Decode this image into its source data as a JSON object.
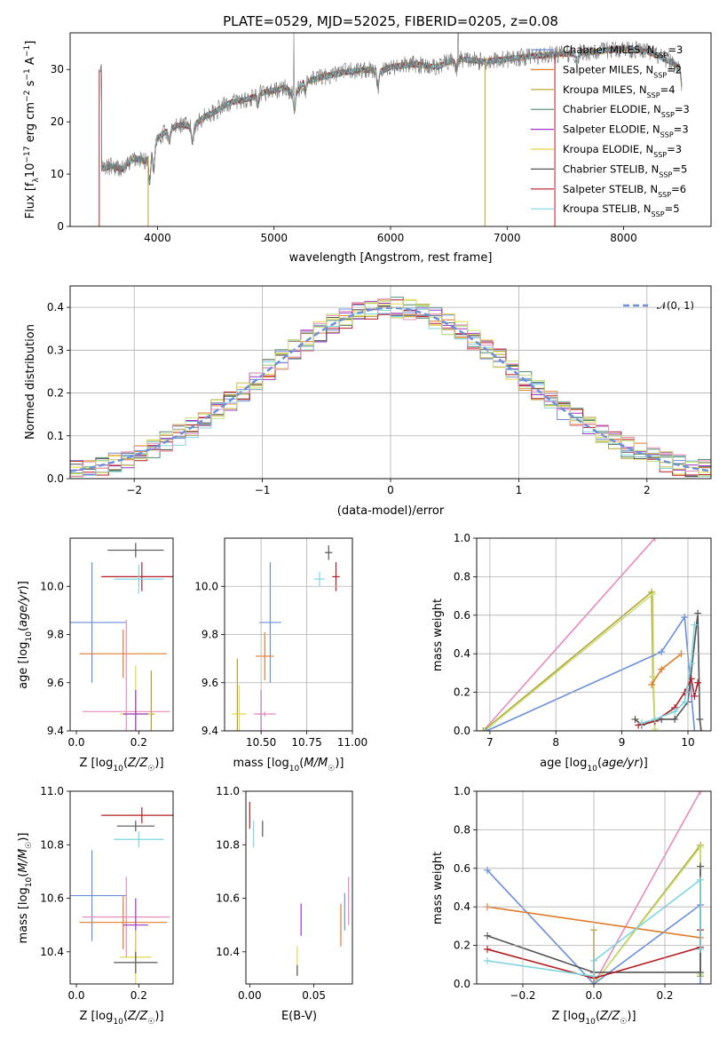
{
  "figure_title": "PLATE=0529, MJD=52025, FIBERID=0205, z=0.08",
  "colors": {
    "Chabrier MILES": "#6a8fdb",
    "Salpeter MILES": "#e07b2a",
    "Kroupa MILES": "#b5a32d",
    "Chabrier ELODIE": "#4f8a6e",
    "Salpeter ELODIE": "#9b37c4",
    "Kroupa ELODIE": "#e3d84a",
    "Chabrier STELIB": "#555555",
    "Salpeter STELIB": "#b51c22",
    "Kroupa STELIB": "#7fd6df",
    "extra_pink": "#e88bbd",
    "extra_lime": "#c6e07a",
    "gauss": "#6a8fdb"
  },
  "chart_data": [
    {
      "id": "spectrum",
      "type": "line",
      "xlabel": "wavelength [Angstrom, rest frame]",
      "ylabel": "Flux [fλ10⁻¹⁷ erg cm⁻² s⁻¹ A⁻¹]",
      "xlim": [
        3250,
        8750
      ],
      "ylim": [
        0,
        37
      ],
      "xticks": [
        4000,
        5000,
        6000,
        7000,
        8000
      ],
      "yticks": [
        0,
        10,
        20,
        30
      ],
      "legend": {
        "placement": "right",
        "entries": [
          {
            "name": "Chabrier MILES",
            "nssp": "3"
          },
          {
            "name": "Salpeter MILES",
            "nssp": "2"
          },
          {
            "name": "Kroupa MILES",
            "nssp": "4"
          },
          {
            "name": "Chabrier ELODIE",
            "nssp": "3"
          },
          {
            "name": "Salpeter ELODIE",
            "nssp": "3"
          },
          {
            "name": "Kroupa ELODIE",
            "nssp": "3"
          },
          {
            "name": "Chabrier STELIB",
            "nssp": "5"
          },
          {
            "name": "Salpeter STELIB",
            "nssp": "6"
          },
          {
            "name": "Kroupa STELIB",
            "nssp": "5"
          }
        ]
      },
      "continuum": [
        [
          3520,
          11
        ],
        [
          3600,
          11.5
        ],
        [
          3700,
          11
        ],
        [
          3800,
          13
        ],
        [
          3900,
          12.5
        ],
        [
          3960,
          15.5
        ],
        [
          4000,
          17
        ],
        [
          4100,
          18.5
        ],
        [
          4200,
          19.5
        ],
        [
          4300,
          19
        ],
        [
          4400,
          21
        ],
        [
          4500,
          22
        ],
        [
          4600,
          23.5
        ],
        [
          4700,
          24
        ],
        [
          4800,
          24.5
        ],
        [
          4900,
          25.5
        ],
        [
          5000,
          26
        ],
        [
          5100,
          26.5
        ],
        [
          5175,
          25
        ],
        [
          5250,
          27.5
        ],
        [
          5400,
          28.5
        ],
        [
          5600,
          29.5
        ],
        [
          5800,
          30
        ],
        [
          5900,
          29.5
        ],
        [
          6000,
          30.5
        ],
        [
          6200,
          31
        ],
        [
          6400,
          30.5
        ],
        [
          6500,
          31.5
        ],
        [
          6600,
          32
        ],
        [
          6800,
          31.5
        ],
        [
          7000,
          32
        ],
        [
          7200,
          32.5
        ],
        [
          7500,
          33
        ],
        [
          7800,
          33.5
        ],
        [
          8000,
          34
        ],
        [
          8200,
          33.5
        ],
        [
          8400,
          31.5
        ],
        [
          8500,
          30
        ]
      ],
      "dips": [
        [
          3933,
          6
        ],
        [
          3968,
          5
        ],
        [
          4102,
          2.5
        ],
        [
          4300,
          3
        ],
        [
          4861,
          2
        ],
        [
          5175,
          3
        ],
        [
          5270,
          1.5
        ],
        [
          5890,
          3
        ],
        [
          6563,
          2
        ],
        [
          7600,
          2
        ],
        [
          8500,
          3
        ]
      ],
      "spikes": [
        [
          5170,
          37
        ],
        [
          6580,
          37
        ]
      ],
      "dropouts": [
        [
          3500,
          "Salpeter STELIB"
        ],
        [
          3920,
          "Kroupa MILES"
        ],
        [
          6810,
          "Kroupa MILES"
        ],
        [
          7410,
          "Salpeter STELIB"
        ]
      ]
    },
    {
      "id": "residuals",
      "type": "line",
      "xlabel": "(data-model)/error",
      "ylabel": "Normed distribution",
      "xlim": [
        -2.5,
        2.5
      ],
      "ylim": [
        0,
        0.45
      ],
      "xticks": [
        -2,
        -1,
        0,
        1,
        2
      ],
      "yticks": [
        0.0,
        0.1,
        0.2,
        0.3,
        0.4
      ],
      "grid": true,
      "legend": {
        "placement": "top-right",
        "entries": [
          "𝒩(0, 1)"
        ]
      },
      "bin_width": 0.1,
      "histogram_series": [
        "Chabrier MILES",
        "Salpeter MILES",
        "Kroupa MILES",
        "Chabrier ELODIE",
        "Salpeter ELODIE",
        "Kroupa ELODIE",
        "Chabrier STELIB",
        "Salpeter STELIB",
        "Kroupa STELIB",
        "extra_pink",
        "extra_lime"
      ]
    },
    {
      "id": "age_vs_Z",
      "type": "scatter",
      "xlabel": "Z [log₁₀(Z/Z☉)]",
      "ylabel": "age  [log₁₀(age/yr)]",
      "xlim": [
        -0.02,
        0.31
      ],
      "ylim": [
        9.4,
        10.2
      ],
      "xticks": [
        0.0,
        0.2
      ],
      "yticks": [
        9.4,
        9.6,
        9.8,
        10.0
      ],
      "points": [
        {
          "c": "Chabrier STELIB",
          "x": 0.19,
          "xe": 0.09,
          "y": 10.15,
          "ye": 0.03
        },
        {
          "c": "Salpeter STELIB",
          "x": 0.21,
          "xe": 0.13,
          "y": 10.04,
          "ye": 0.06
        },
        {
          "c": "Kroupa STELIB",
          "x": 0.2,
          "xe": 0.08,
          "y": 10.03,
          "ye": 0.06
        },
        {
          "c": "Chabrier MILES",
          "x": 0.05,
          "xe": 0.11,
          "y": 9.85,
          "ye": 0.25
        },
        {
          "c": "Salpeter MILES",
          "x": 0.15,
          "xe": 0.14,
          "y": 9.72,
          "ye": 0.1
        },
        {
          "c": "extra_pink",
          "x": 0.16,
          "xe": 0.14,
          "y": 9.48,
          "ye": 0.38
        },
        {
          "c": "Kroupa MILES",
          "x": 0.24,
          "xe": 0.01,
          "y": 9.47,
          "ye": 0.18
        },
        {
          "c": "Kroupa ELODIE",
          "x": 0.19,
          "xe": 0.05,
          "y": 9.47,
          "ye": 0.2
        },
        {
          "c": "Salpeter ELODIE",
          "x": 0.19,
          "xe": 0.04,
          "y": 9.47,
          "ye": 0.1
        }
      ]
    },
    {
      "id": "age_vs_mass",
      "type": "scatter",
      "xlabel": "mass [log₁₀(M/M☉)]",
      "ylabel": "",
      "xlim": [
        10.3,
        11.0
      ],
      "ylim": [
        9.4,
        10.2
      ],
      "xticks": [
        10.5,
        10.75,
        11.0
      ],
      "yticks": [
        9.4,
        9.6,
        9.8,
        10.0
      ],
      "grid": true,
      "points": [
        {
          "c": "Chabrier STELIB",
          "x": 10.87,
          "xe": 0.02,
          "y": 10.14,
          "ye": 0.03
        },
        {
          "c": "Salpeter STELIB",
          "x": 10.91,
          "xe": 0.02,
          "y": 10.04,
          "ye": 0.06
        },
        {
          "c": "Kroupa STELIB",
          "x": 10.82,
          "xe": 0.03,
          "y": 10.03,
          "ye": 0.03
        },
        {
          "c": "Chabrier MILES",
          "x": 10.55,
          "xe": 0.06,
          "y": 9.85,
          "ye": 0.25
        },
        {
          "c": "Salpeter MILES",
          "x": 10.52,
          "xe": 0.05,
          "y": 9.71,
          "ye": 0.1
        },
        {
          "c": "Kroupa MILES",
          "x": 10.37,
          "xe": 0.01,
          "y": 9.47,
          "ye": 0.23
        },
        {
          "c": "Kroupa ELODIE",
          "x": 10.38,
          "xe": 0.04,
          "y": 9.47,
          "ye": 0.12
        },
        {
          "c": "Salpeter ELODIE",
          "x": 10.5,
          "xe": 0.02,
          "y": 9.47,
          "ye": 0.1
        },
        {
          "c": "extra_pink",
          "x": 10.52,
          "xe": 0.06,
          "y": 9.47,
          "ye": 0.01
        }
      ]
    },
    {
      "id": "mass_weight_vs_age",
      "type": "line",
      "xlabel": "age  [log₁₀(age/yr)]",
      "ylabel": "mass weight",
      "xlim": [
        6.8,
        10.35
      ],
      "ylim": [
        0,
        1
      ],
      "xticks": [
        7,
        8,
        9,
        10
      ],
      "yticks": [
        0.0,
        0.2,
        0.4,
        0.6,
        0.8,
        1.0
      ],
      "grid": true,
      "series": [
        {
          "c": "extra_pink",
          "x": [
            6.9,
            9.5
          ],
          "y": [
            0.0,
            1.0
          ]
        },
        {
          "c": "Kroupa MILES",
          "x": [
            6.9,
            9.45,
            9.47,
            9.5
          ],
          "y": [
            0.0,
            0.72,
            0.28,
            0.0
          ]
        },
        {
          "c": "extra_lime",
          "x": [
            6.92,
            9.47,
            9.48,
            9.5
          ],
          "y": [
            0.0,
            0.71,
            0.28,
            0.01
          ]
        },
        {
          "c": "Chabrier MILES",
          "x": [
            6.95,
            9.6,
            9.95,
            10.1
          ],
          "y": [
            0.0,
            0.41,
            0.59,
            0.0
          ]
        },
        {
          "c": "Salpeter MILES",
          "x": [
            9.45,
            9.6,
            9.9
          ],
          "y": [
            0.24,
            0.32,
            0.4
          ]
        },
        {
          "c": "Chabrier STELIB",
          "x": [
            9.2,
            9.3,
            9.6,
            9.8,
            10.0,
            10.15,
            10.18,
            10.2
          ],
          "y": [
            0.06,
            0.03,
            0.06,
            0.06,
            0.15,
            0.61,
            0.06,
            0.0
          ]
        },
        {
          "c": "Salpeter STELIB",
          "x": [
            9.25,
            9.5,
            9.8,
            9.95,
            10.05,
            10.1,
            10.15
          ],
          "y": [
            0.03,
            0.05,
            0.12,
            0.2,
            0.27,
            0.18,
            0.25
          ]
        },
        {
          "c": "Kroupa STELIB",
          "x": [
            9.3,
            9.5,
            9.8,
            9.95,
            10.05,
            10.1
          ],
          "y": [
            0.04,
            0.06,
            0.1,
            0.15,
            0.35,
            0.55
          ]
        }
      ]
    },
    {
      "id": "mass_vs_Z",
      "type": "scatter",
      "xlabel": "Z [log₁₀(Z/Z☉)]",
      "ylabel": "mass [log₁₀(M/M☉)]",
      "xlim": [
        -0.02,
        0.31
      ],
      "ylim": [
        10.28,
        11.0
      ],
      "xticks": [
        0.0,
        0.2
      ],
      "yticks": [
        10.4,
        10.6,
        10.8,
        11.0
      ],
      "points": [
        {
          "c": "Salpeter STELIB",
          "x": 0.21,
          "xe": 0.13,
          "y": 10.91,
          "ye": 0.03
        },
        {
          "c": "Chabrier STELIB",
          "x": 0.19,
          "xe": 0.06,
          "y": 10.87,
          "ye": 0.02
        },
        {
          "c": "Kroupa STELIB",
          "x": 0.2,
          "xe": 0.08,
          "y": 10.82,
          "ye": 0.03
        },
        {
          "c": "Chabrier MILES",
          "x": 0.05,
          "xe": 0.11,
          "y": 10.61,
          "ye": 0.17
        },
        {
          "c": "extra_pink",
          "x": 0.16,
          "xe": 0.14,
          "y": 10.53,
          "ye": 0.15
        },
        {
          "c": "Salpeter MILES",
          "x": 0.15,
          "xe": 0.14,
          "y": 10.51,
          "ye": 0.1
        },
        {
          "c": "Salpeter ELODIE",
          "x": 0.19,
          "xe": 0.04,
          "y": 10.5,
          "ye": 0.1
        },
        {
          "c": "Kroupa ELODIE",
          "x": 0.19,
          "xe": 0.05,
          "y": 10.38,
          "ye": 0.1
        },
        {
          "c": "Chabrier STELIB",
          "x": 0.19,
          "xe": 0.07,
          "y": 10.36,
          "ye": 0.04
        }
      ]
    },
    {
      "id": "mass_vs_EBV",
      "type": "scatter",
      "xlabel": "E(B-V)",
      "ylabel": "",
      "xlim": [
        -0.003,
        0.08
      ],
      "ylim": [
        10.28,
        11.0
      ],
      "xticks": [
        0.0,
        0.05
      ],
      "yticks": [
        10.4,
        10.6,
        10.8,
        11.0
      ],
      "points": [
        {
          "c": "Salpeter STELIB",
          "x": 0.0,
          "xe": 0.0,
          "y": 10.91,
          "ye": 0.05
        },
        {
          "c": "Kroupa STELIB",
          "x": 0.003,
          "xe": 0.0,
          "y": 10.84,
          "ye": 0.05
        },
        {
          "c": "Chabrier STELIB",
          "x": 0.01,
          "xe": 0.0,
          "y": 10.86,
          "ye": 0.03
        },
        {
          "c": "extra_pink",
          "x": 0.077,
          "xe": 0.0,
          "y": 10.59,
          "ye": 0.09
        },
        {
          "c": "Chabrier MILES",
          "x": 0.074,
          "xe": 0.0,
          "y": 10.55,
          "ye": 0.07
        },
        {
          "c": "Salpeter MILES",
          "x": 0.071,
          "xe": 0.0,
          "y": 10.5,
          "ye": 0.08
        },
        {
          "c": "Salpeter ELODIE",
          "x": 0.04,
          "xe": 0.0,
          "y": 10.52,
          "ye": 0.06
        },
        {
          "c": "Kroupa ELODIE",
          "x": 0.037,
          "xe": 0.0,
          "y": 10.37,
          "ye": 0.05
        },
        {
          "c": "Chabrier STELIB",
          "x": 0.037,
          "xe": 0.0,
          "y": 10.33,
          "ye": 0.02
        }
      ]
    },
    {
      "id": "mass_weight_vs_Z",
      "type": "line",
      "xlabel": "Z [log₁₀(Z/Z☉)]",
      "ylabel": "mass weight",
      "xlim": [
        -0.33,
        0.33
      ],
      "ylim": [
        0,
        1
      ],
      "xticks": [
        -0.2,
        0.0,
        0.2
      ],
      "yticks": [
        0.0,
        0.2,
        0.4,
        0.6,
        0.8,
        1.0
      ],
      "grid": true,
      "series": [
        {
          "c": "extra_pink",
          "x": [
            0.0,
            0.3
          ],
          "y": [
            0.0,
            1.0
          ]
        },
        {
          "c": "Kroupa MILES",
          "x": [
            0.0,
            0.0,
            0.3,
            0.3
          ],
          "y": [
            0.28,
            0.0,
            0.72,
            0.04
          ]
        },
        {
          "c": "extra_lime",
          "x": [
            0.0,
            0.3,
            0.3
          ],
          "y": [
            0.0,
            0.71,
            0.05
          ]
        },
        {
          "c": "Chabrier MILES",
          "x": [
            -0.3,
            0.0,
            0.3,
            0.3
          ],
          "y": [
            0.59,
            0.0,
            0.41,
            0.0
          ]
        },
        {
          "c": "Salpeter MILES",
          "x": [
            -0.3,
            0.3
          ],
          "y": [
            0.4,
            0.24
          ]
        },
        {
          "c": "Chabrier STELIB",
          "x": [
            -0.3,
            0.0,
            0.3,
            0.3
          ],
          "y": [
            0.25,
            0.06,
            0.06,
            0.61
          ]
        },
        {
          "c": "Salpeter STELIB",
          "x": [
            -0.3,
            0.0,
            0.3,
            0.3
          ],
          "y": [
            0.18,
            0.03,
            0.19,
            0.28
          ]
        },
        {
          "c": "Kroupa STELIB",
          "x": [
            -0.3,
            0.0,
            0.0,
            0.3,
            0.3
          ],
          "y": [
            0.12,
            0.04,
            0.12,
            0.54,
            0.18
          ]
        }
      ]
    }
  ]
}
